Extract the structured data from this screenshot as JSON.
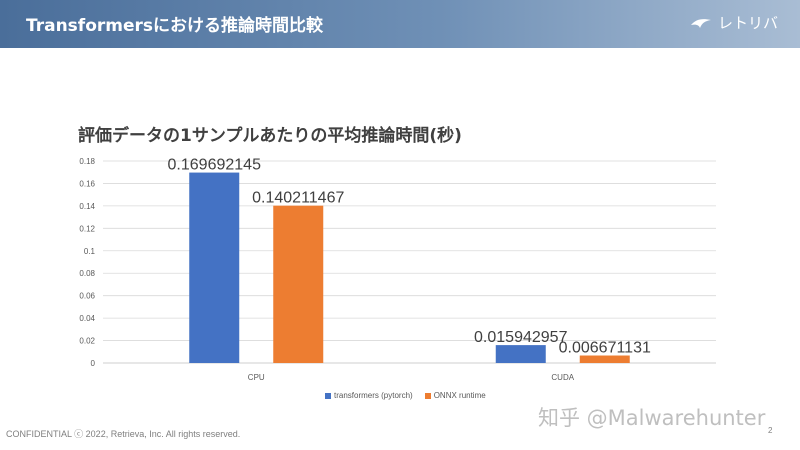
{
  "header": {
    "title": "Transformersにおける推論時間比較",
    "brand": "レトリバ"
  },
  "chart_data": {
    "type": "bar",
    "title": "評価データの1サンプルあたりの平均推論時間(秒)",
    "categories": [
      "CPU",
      "CUDA"
    ],
    "series": [
      {
        "name": "transformers (pytorch)",
        "color": "#4472c4",
        "values": [
          0.169692145,
          0.015942957
        ],
        "labels": [
          "0.169692145",
          "0.015942957"
        ]
      },
      {
        "name": "ONNX runtime",
        "color": "#ed7d31",
        "values": [
          0.140211467,
          0.006671131
        ],
        "labels": [
          "0.140211467",
          "0.006671131"
        ]
      }
    ],
    "yticks": [
      "0",
      "0.02",
      "0.04",
      "0.06",
      "0.08",
      "0.1",
      "0.12",
      "0.14",
      "0.16",
      "0.18"
    ],
    "ylim": [
      0,
      0.18
    ],
    "xlabel": "",
    "ylabel": "",
    "legend": "bottom"
  },
  "footer": {
    "text": "CONFIDENTIAL ⓒ 2022, Retrieva, Inc. All rights reserved.",
    "page": "2"
  },
  "watermark": "知乎 @Malwarehunter"
}
